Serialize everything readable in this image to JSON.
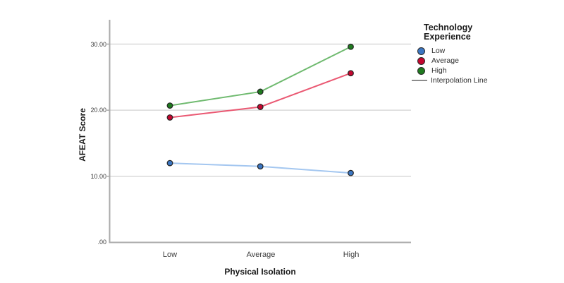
{
  "chart_data": {
    "type": "line",
    "categories": [
      "Low",
      "Average",
      "High"
    ],
    "series": [
      {
        "name": "Low",
        "values": [
          12.0,
          11.5,
          10.5
        ],
        "point_color": "#3B76C2",
        "line_color": "#A4C7F0"
      },
      {
        "name": "Average",
        "values": [
          18.9,
          20.5,
          25.6
        ],
        "point_color": "#C4062F",
        "line_color": "#EA5872"
      },
      {
        "name": "High",
        "values": [
          20.7,
          22.8,
          29.6
        ],
        "point_color": "#1F7A1F",
        "line_color": "#6FBA6F"
      }
    ],
    "xlabel": "Physical Isolation",
    "ylabel": "AFEAT Score",
    "y_ticks": [
      {
        "value": 0,
        "label": ".00"
      },
      {
        "value": 10,
        "label": "10.00"
      },
      {
        "value": 20,
        "label": "20.00"
      },
      {
        "value": 30,
        "label": "30.00"
      }
    ],
    "ylim": [
      0,
      33.7
    ],
    "grid": true,
    "legend": {
      "title": "Technology Experience",
      "entries": [
        "Low",
        "Average",
        "High"
      ],
      "interpolation_label": "Interpolation Line",
      "position": "right"
    },
    "colors": {
      "grid": "#D9D9D9",
      "axis": "#ABABAB",
      "interpolation_swatch": "#8C8C8C",
      "point_outline": "#222222"
    }
  }
}
